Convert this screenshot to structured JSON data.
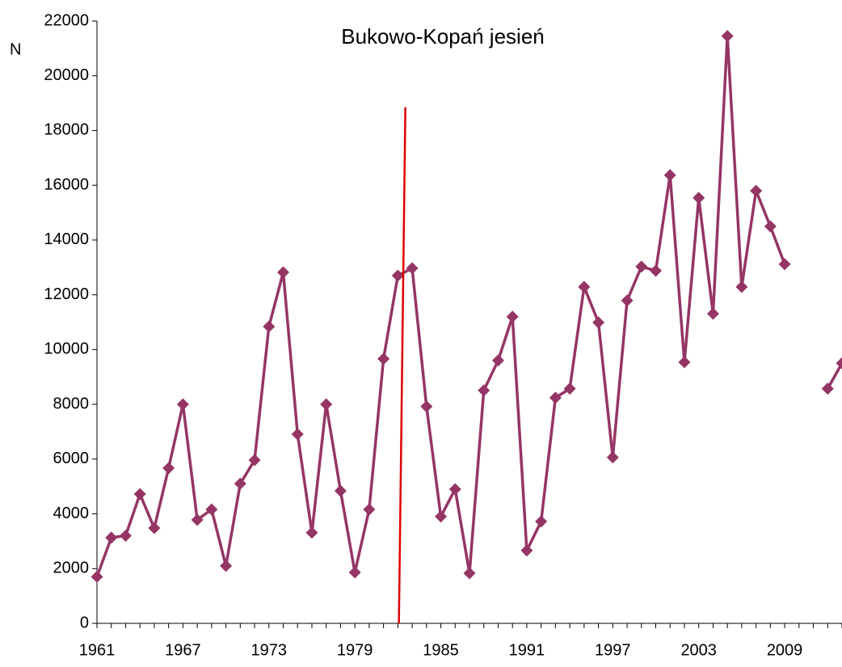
{
  "chart_data": {
    "type": "line",
    "title": "Bukowo-Kopań jesień",
    "ylabel": "N",
    "x": [
      1961,
      1962,
      1963,
      1964,
      1965,
      1966,
      1967,
      1968,
      1969,
      1970,
      1971,
      1972,
      1973,
      1974,
      1975,
      1976,
      1977,
      1978,
      1979,
      1980,
      1981,
      1982,
      1983,
      1984,
      1985,
      1986,
      1987,
      1988,
      1989,
      1990,
      1991,
      1992,
      1993,
      1994,
      1995,
      1996,
      1997,
      1998,
      1999,
      2000,
      2001,
      2002,
      2003,
      2004,
      2005,
      2006,
      2007,
      2008,
      2009,
      2010,
      2011,
      2012,
      2013
    ],
    "values": [
      1700,
      3130,
      3200,
      4720,
      3480,
      5670,
      8000,
      3780,
      4160,
      2100,
      5100,
      5960,
      10840,
      12820,
      6910,
      3310,
      8000,
      4840,
      1860,
      4160,
      9660,
      12700,
      12970,
      7920,
      3900,
      4900,
      1830,
      8510,
      9600,
      11200,
      2660,
      3720,
      8240,
      8570,
      12290,
      10990,
      6060,
      11790,
      13030,
      12880,
      16370,
      9540,
      15540,
      11310,
      21450,
      12290,
      15800,
      14500,
      13120,
      null,
      null,
      8570,
      9500
    ],
    "color": "#953566",
    "xlim": [
      1961,
      2013
    ],
    "xticks": [
      1961,
      1967,
      1973,
      1979,
      1985,
      1991,
      1997,
      2003,
      2009
    ],
    "ylim": [
      0,
      22000
    ],
    "yticks": [
      0,
      2000,
      4000,
      6000,
      8000,
      10000,
      12000,
      14000,
      16000,
      18000,
      20000,
      22000
    ],
    "vline": {
      "x": 1982.3,
      "ylim": [
        0,
        18850
      ],
      "color": "#e00000"
    }
  }
}
